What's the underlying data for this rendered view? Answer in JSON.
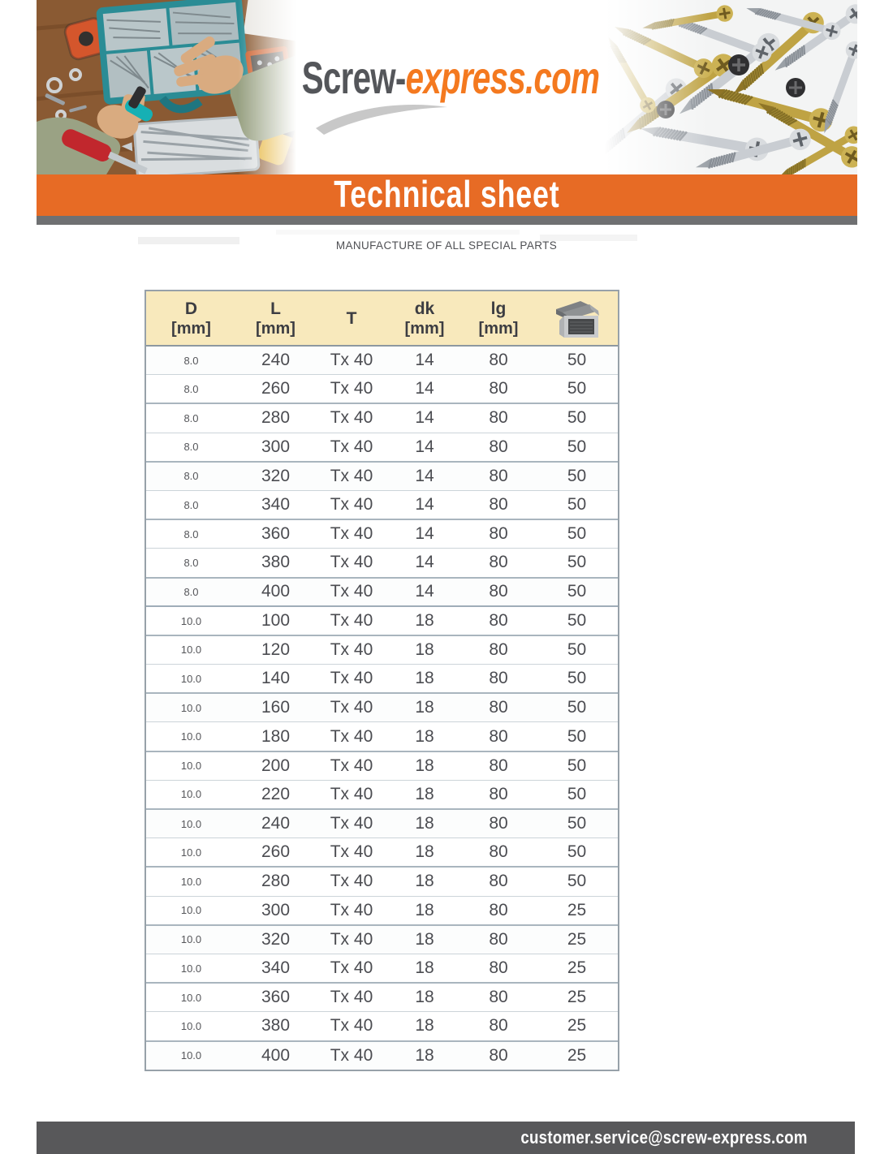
{
  "brand": {
    "logo_primary": "Screw-",
    "logo_secondary": "express.com"
  },
  "banner": {
    "title": "Technical sheet"
  },
  "subtitle": "MANUFACTURE OF ALL SPECIAL PARTS",
  "table": {
    "columns": [
      {
        "label": "D",
        "unit": "[mm]"
      },
      {
        "label": "L",
        "unit": "[mm]"
      },
      {
        "label": "T",
        "unit": ""
      },
      {
        "label": "dk",
        "unit": "[mm]"
      },
      {
        "label": "lg",
        "unit": "[mm]"
      },
      {
        "label": "",
        "unit": "",
        "icon": "packaging-box-icon"
      }
    ],
    "rows": [
      [
        "8.0",
        "240",
        "Tx 40",
        "14",
        "80",
        "50"
      ],
      [
        "8.0",
        "260",
        "Tx 40",
        "14",
        "80",
        "50"
      ],
      [
        "8.0",
        "280",
        "Tx 40",
        "14",
        "80",
        "50"
      ],
      [
        "8.0",
        "300",
        "Tx 40",
        "14",
        "80",
        "50"
      ],
      [
        "8.0",
        "320",
        "Tx 40",
        "14",
        "80",
        "50"
      ],
      [
        "8.0",
        "340",
        "Tx 40",
        "14",
        "80",
        "50"
      ],
      [
        "8.0",
        "360",
        "Tx 40",
        "14",
        "80",
        "50"
      ],
      [
        "8.0",
        "380",
        "Tx 40",
        "14",
        "80",
        "50"
      ],
      [
        "8.0",
        "400",
        "Tx 40",
        "14",
        "80",
        "50"
      ],
      [
        "10.0",
        "100",
        "Tx 40",
        "18",
        "80",
        "50"
      ],
      [
        "10.0",
        "120",
        "Tx 40",
        "18",
        "80",
        "50"
      ],
      [
        "10.0",
        "140",
        "Tx 40",
        "18",
        "80",
        "50"
      ],
      [
        "10.0",
        "160",
        "Tx 40",
        "18",
        "80",
        "50"
      ],
      [
        "10.0",
        "180",
        "Tx 40",
        "18",
        "80",
        "50"
      ],
      [
        "10.0",
        "200",
        "Tx 40",
        "18",
        "80",
        "50"
      ],
      [
        "10.0",
        "220",
        "Tx 40",
        "18",
        "80",
        "50"
      ],
      [
        "10.0",
        "240",
        "Tx 40",
        "18",
        "80",
        "50"
      ],
      [
        "10.0",
        "260",
        "Tx 40",
        "18",
        "80",
        "50"
      ],
      [
        "10.0",
        "280",
        "Tx 40",
        "18",
        "80",
        "50"
      ],
      [
        "10.0",
        "300",
        "Tx 40",
        "18",
        "80",
        "25"
      ],
      [
        "10.0",
        "320",
        "Tx 40",
        "18",
        "80",
        "25"
      ],
      [
        "10.0",
        "340",
        "Tx 40",
        "18",
        "80",
        "25"
      ],
      [
        "10.0",
        "360",
        "Tx 40",
        "18",
        "80",
        "25"
      ],
      [
        "10.0",
        "380",
        "Tx 40",
        "18",
        "80",
        "25"
      ],
      [
        "10.0",
        "400",
        "Tx 40",
        "18",
        "80",
        "25"
      ]
    ]
  },
  "footer": {
    "email": "customer.service@screw-express.com"
  },
  "colors": {
    "banner_orange": "#e76b25",
    "logo_orange": "#f4791f",
    "logo_gray": "#54565a",
    "divider_gray": "#6f7072",
    "footer_gray": "#58585a",
    "table_header_cream": "#f8e9bc",
    "table_border": "#97a1a9"
  }
}
